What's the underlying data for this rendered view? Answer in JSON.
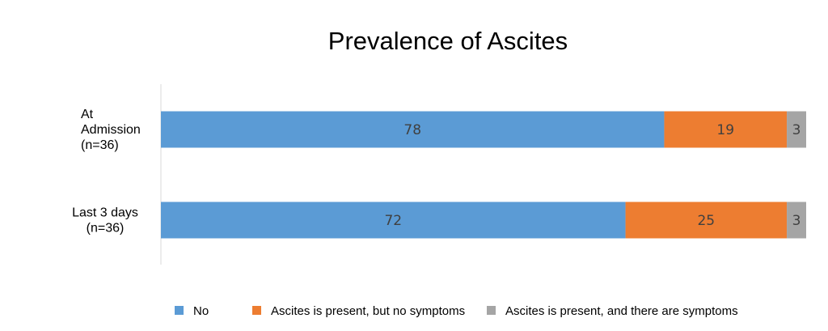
{
  "chart_data": {
    "type": "bar",
    "orientation": "horizontal",
    "stacked": true,
    "title": "Prevalence of Ascites",
    "categories": [
      [
        "At",
        "Admission",
        "(n=36)"
      ],
      [
        "Last 3 days",
        "(n=36)"
      ]
    ],
    "series": [
      {
        "name": "No",
        "values": [
          78,
          72
        ],
        "color": "#5B9BD5"
      },
      {
        "name": "Ascites is present, but no symptoms",
        "values": [
          19,
          25
        ],
        "color": "#ED7D31"
      },
      {
        "name": "Ascites is present, and there are symptoms",
        "values": [
          3,
          3
        ],
        "color": "#A5A5A5"
      }
    ],
    "xlim": [
      0,
      100
    ],
    "grid": false,
    "legend_position": "bottom"
  }
}
